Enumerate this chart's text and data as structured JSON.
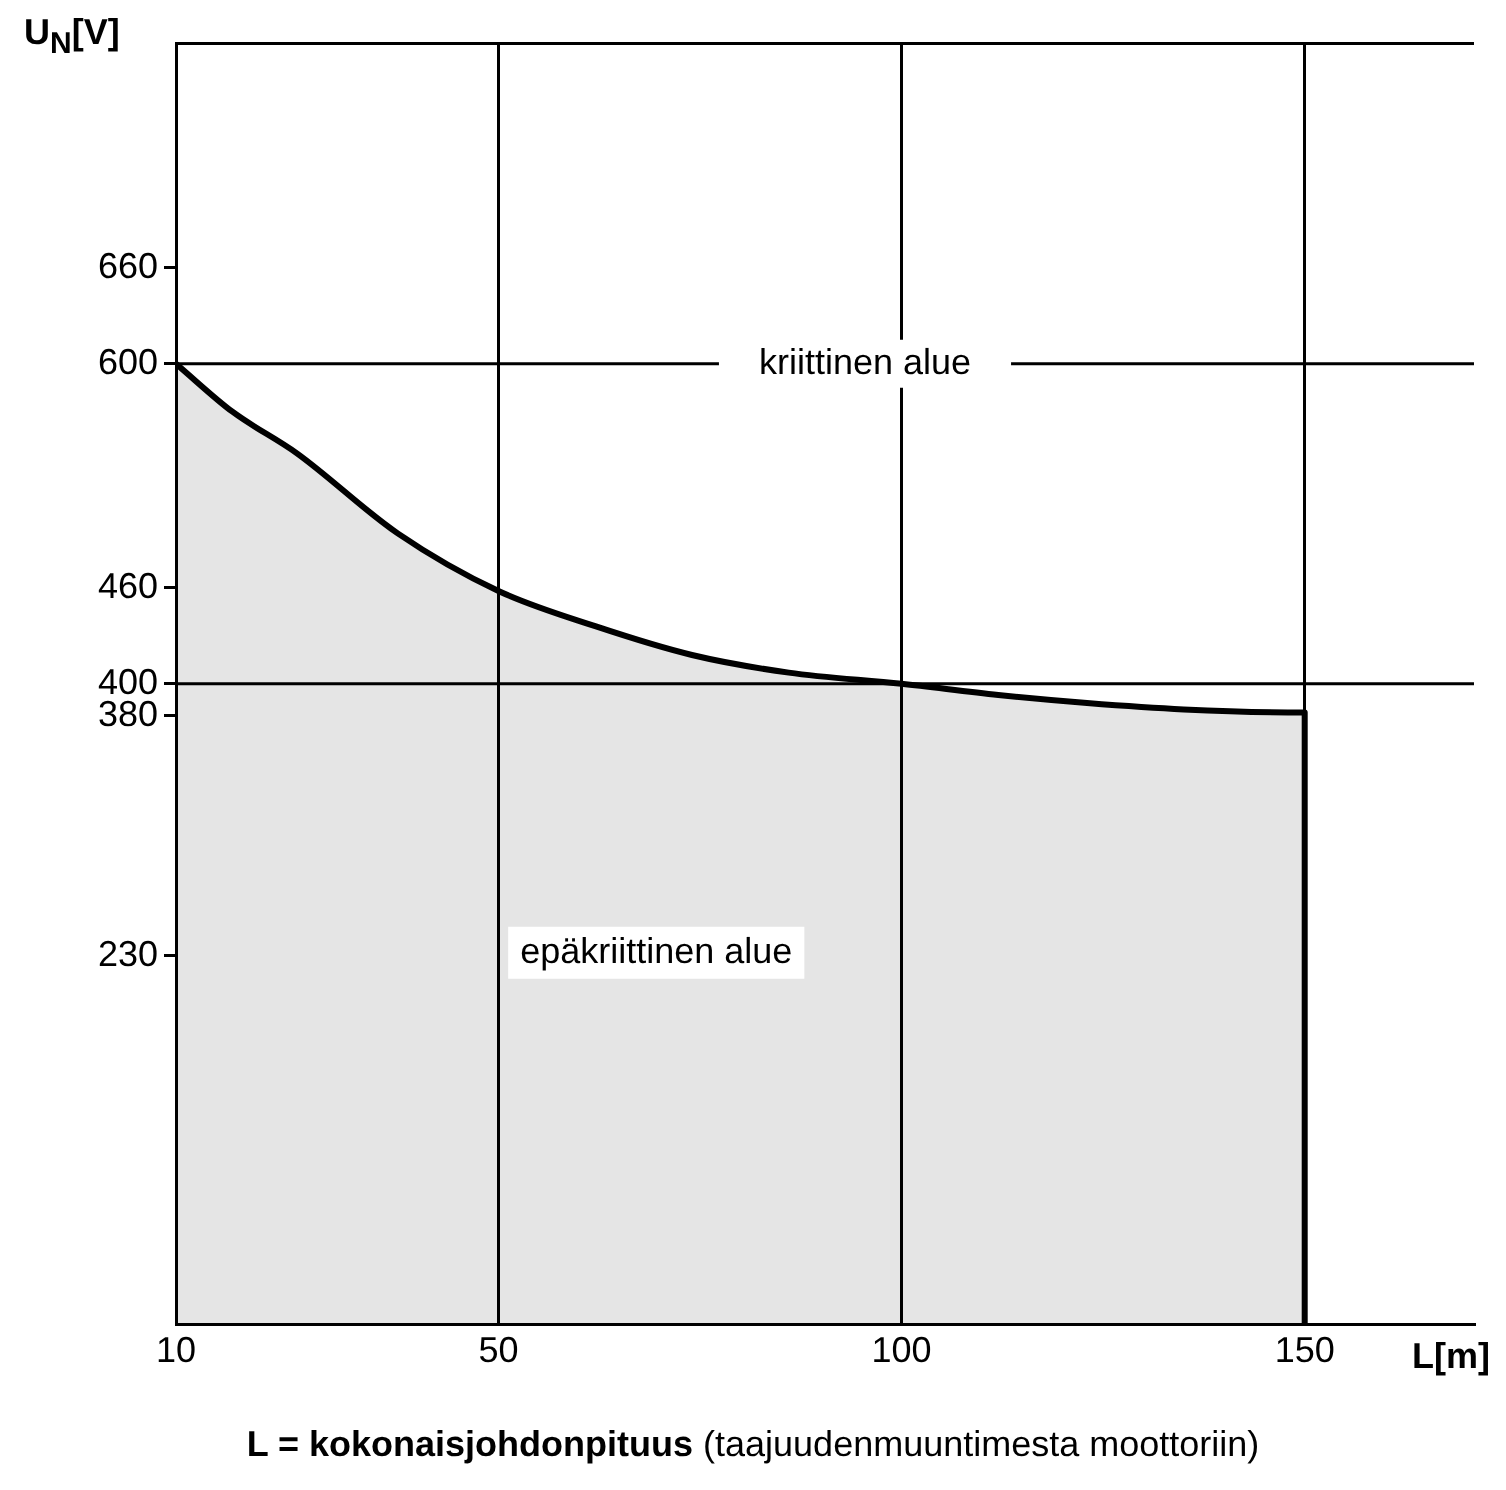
{
  "chart_data": {
    "type": "area",
    "ylabel": "U$_{N}$[V]",
    "xlabel": "L[m]",
    "x": [
      10,
      17,
      25,
      37.5,
      50,
      62,
      74,
      86,
      100,
      112,
      123,
      135,
      150,
      150
    ],
    "values": [
      600,
      570,
      544,
      494,
      458,
      436,
      418,
      407,
      400,
      393,
      388,
      384,
      382,
      0
    ],
    "color": "#000000",
    "xlim": [
      10,
      171
    ],
    "xticks": [
      10,
      50,
      100,
      150
    ],
    "ylim": [
      0,
      800
    ],
    "yticks": [
      660,
      600,
      460,
      400,
      380,
      230
    ],
    "grid": "x",
    "ref_lines": [
      {
        "axis": "y",
        "value": 600,
        "label": "kriittinen alue"
      },
      {
        "axis": "y",
        "value": 400
      }
    ],
    "annotations": [
      "epäkriittinen alue",
      "L = kokonaisjohdonpituus (taajuudenmuuntimesta moottoriin)"
    ]
  }
}
